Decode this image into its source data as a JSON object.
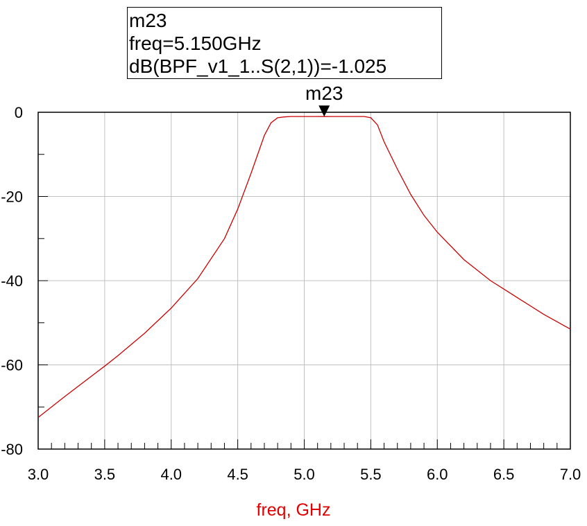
{
  "marker": {
    "name": "m23",
    "freq_line": "freq=5.150GHz",
    "value_line": "dB(BPF_v1_1..S(2,1))=-1.025",
    "x": 5.15,
    "y": -1.025
  },
  "colors": {
    "trace": "#cc0000",
    "xlabel": "#e00000",
    "grid": "#c0c0c0",
    "axis": "#000000"
  },
  "chart_data": {
    "type": "line",
    "title": "",
    "xlabel": "freq, GHz",
    "ylabel": "",
    "xlim": [
      3.0,
      7.0
    ],
    "ylim": [
      -80,
      0
    ],
    "x_ticks": [
      "3.0",
      "3.5",
      "4.0",
      "4.5",
      "5.0",
      "5.5",
      "6.0",
      "6.5",
      "7.0"
    ],
    "y_ticks": [
      "0",
      "-20",
      "-40",
      "-60",
      "-80"
    ],
    "grid": true,
    "series": [
      {
        "name": "",
        "x": [
          3.0,
          3.2,
          3.4,
          3.5,
          3.6,
          3.8,
          4.0,
          4.2,
          4.4,
          4.5,
          4.6,
          4.7,
          4.75,
          4.8,
          4.85,
          4.9,
          5.0,
          5.1,
          5.15,
          5.2,
          5.3,
          5.4,
          5.45,
          5.5,
          5.55,
          5.6,
          5.7,
          5.8,
          5.9,
          6.0,
          6.2,
          6.4,
          6.5,
          6.6,
          6.8,
          7.0
        ],
        "y": [
          -72.5,
          -67.5,
          -62.7,
          -60.3,
          -57.8,
          -52.5,
          -46.5,
          -39.5,
          -30.0,
          -23.0,
          -14.5,
          -5.5,
          -2.5,
          -1.3,
          -1.1,
          -1.0,
          -1.0,
          -1.0,
          -1.025,
          -1.0,
          -1.0,
          -1.0,
          -1.0,
          -1.3,
          -3.0,
          -7.0,
          -13.5,
          -19.5,
          -24.5,
          -28.5,
          -35.0,
          -40.0,
          -42.0,
          -44.0,
          -48.0,
          -51.5
        ]
      }
    ]
  }
}
